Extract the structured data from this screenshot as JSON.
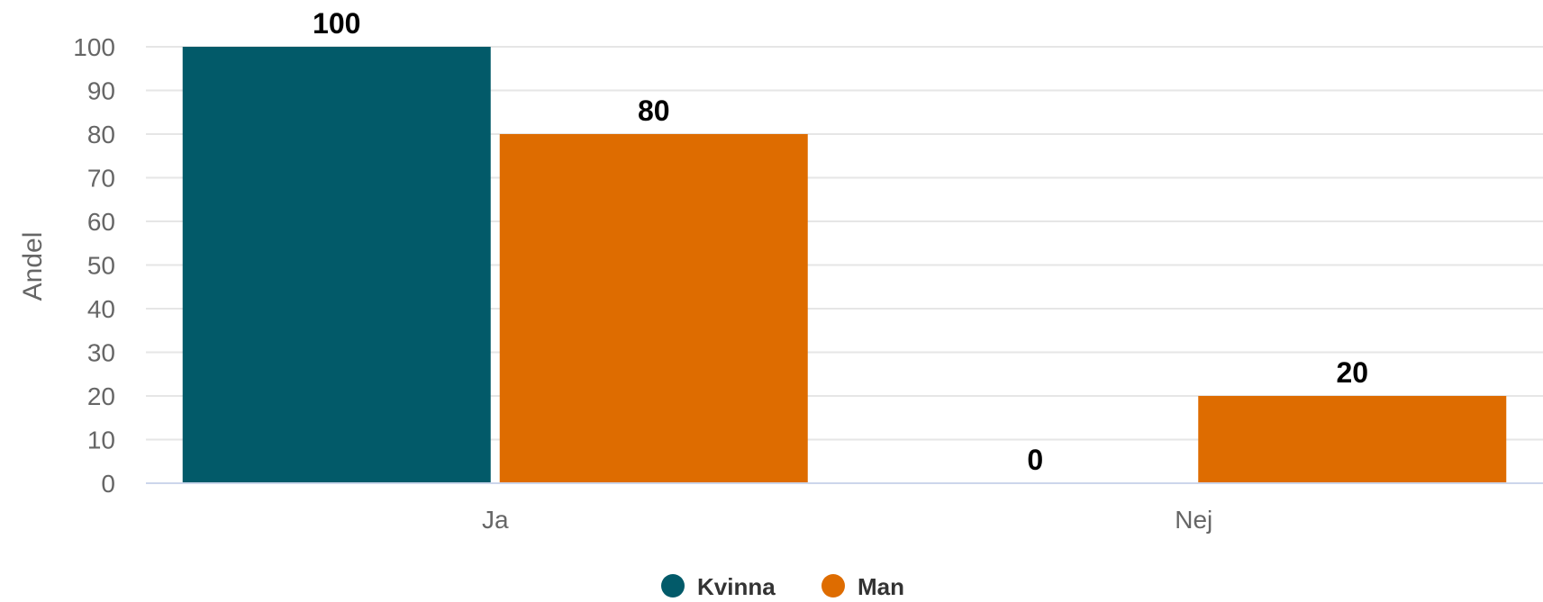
{
  "chart_data": {
    "type": "bar",
    "title": "",
    "xlabel": "",
    "ylabel": "Andel",
    "categories": [
      "Ja",
      "Nej"
    ],
    "series": [
      {
        "name": "Kvinna",
        "values": [
          100,
          0
        ],
        "color": "#025a69"
      },
      {
        "name": "Man",
        "values": [
          80,
          20
        ],
        "color": "#de6c00"
      }
    ],
    "ylim": [
      0,
      100
    ],
    "yticks": [
      0,
      10,
      20,
      30,
      40,
      50,
      60,
      70,
      80,
      90,
      100
    ],
    "grid": true,
    "legend": "bottom-center",
    "data_labels": true
  }
}
